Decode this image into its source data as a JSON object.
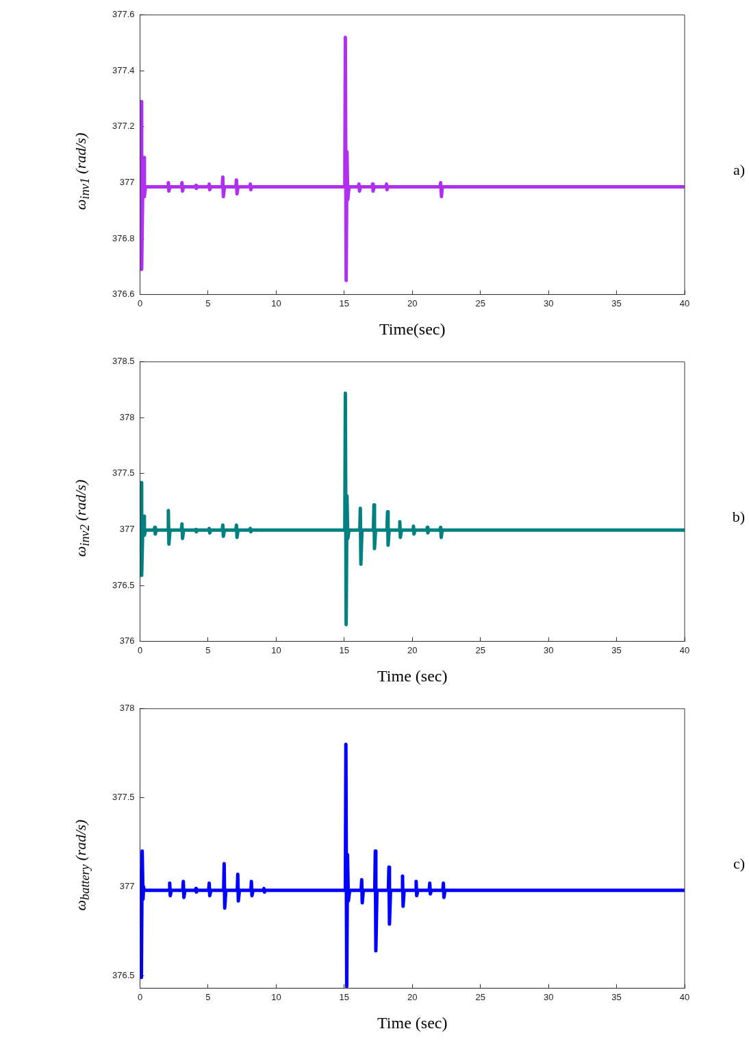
{
  "chart_data": [
    {
      "type": "line",
      "xlabel": "Time(sec)",
      "ylabel": "ω$_{inv1}$ (rad/s)",
      "annotations": [
        "a)"
      ],
      "marker": "none",
      "xlim": [
        0,
        40
      ],
      "xticks": [
        0,
        5,
        10,
        15,
        20,
        25,
        30,
        35,
        40
      ],
      "ylim": [
        376.6,
        377.6
      ],
      "yticks": [
        376.6,
        376.8,
        377,
        377.2,
        377.4,
        377.6
      ],
      "x": [
        0,
        0.08,
        0.12,
        0.2,
        0.28,
        0.32,
        0.4,
        2.04,
        2.08,
        2.12,
        2.2,
        3.04,
        3.08,
        3.12,
        3.2,
        4.06,
        4.1,
        4.14,
        4.2,
        5.04,
        5.08,
        5.12,
        5.2,
        6.04,
        6.08,
        6.12,
        6.2,
        7.04,
        7.08,
        7.12,
        7.2,
        8.06,
        8.1,
        8.14,
        8.2,
        15.04,
        15.08,
        15.14,
        15.2,
        15.26,
        15.35,
        16.04,
        16.08,
        16.12,
        16.2,
        17.04,
        17.08,
        17.12,
        17.2,
        18.06,
        18.1,
        18.14,
        18.2,
        22.04,
        22.08,
        22.14,
        22.2,
        40
      ],
      "series": [
        {
          "color": "#b030f2",
          "values": [
            376.985,
            377.29,
            376.69,
            376.985,
            377.09,
            376.95,
            376.985,
            376.985,
            377.0,
            376.97,
            376.985,
            376.985,
            377.0,
            376.97,
            376.985,
            376.985,
            376.99,
            376.98,
            376.985,
            376.985,
            376.995,
            376.975,
            376.985,
            376.985,
            377.02,
            376.95,
            376.985,
            376.985,
            377.01,
            376.96,
            376.985,
            376.985,
            376.995,
            376.975,
            376.985,
            376.985,
            377.52,
            376.65,
            377.11,
            376.94,
            376.985,
            376.985,
            376.995,
            376.97,
            376.985,
            376.985,
            376.995,
            376.97,
            376.985,
            376.985,
            376.995,
            376.975,
            376.985,
            376.985,
            377.0,
            376.95,
            376.985,
            376.985
          ]
        }
      ]
    },
    {
      "type": "line",
      "xlabel": "Time (sec)",
      "ylabel": "ω$_{inv2}$ (rad/s)",
      "annotations": [
        "b)"
      ],
      "marker": "none",
      "xlim": [
        0,
        40
      ],
      "xticks": [
        0,
        5,
        10,
        15,
        20,
        25,
        30,
        35,
        40
      ],
      "ylim": [
        376,
        378.5
      ],
      "yticks": [
        376,
        376.5,
        377,
        377.5,
        378,
        378.5
      ],
      "x": [
        0,
        0.08,
        0.12,
        0.2,
        0.28,
        0.32,
        0.4,
        1.04,
        1.08,
        1.12,
        1.2,
        2.04,
        2.08,
        2.12,
        2.2,
        3.04,
        3.08,
        3.12,
        3.2,
        4.06,
        4.1,
        4.14,
        4.2,
        5.04,
        5.08,
        5.12,
        5.2,
        6.04,
        6.08,
        6.12,
        6.2,
        7.04,
        7.08,
        7.12,
        7.2,
        8.06,
        8.1,
        8.14,
        8.2,
        15.04,
        15.08,
        15.14,
        15.2,
        15.26,
        15.35,
        16.14,
        16.18,
        16.22,
        16.3,
        17.14,
        17.18,
        17.22,
        17.3,
        18.14,
        18.18,
        18.22,
        18.3,
        19.04,
        19.08,
        19.12,
        19.2,
        20.04,
        20.08,
        20.12,
        20.2,
        21.06,
        21.1,
        21.14,
        21.2,
        22.04,
        22.08,
        22.12,
        22.2,
        40
      ],
      "series": [
        {
          "color": "#008080",
          "values": [
            376.995,
            377.42,
            376.59,
            376.995,
            377.12,
            376.95,
            376.995,
            376.995,
            377.02,
            376.96,
            376.995,
            376.995,
            377.17,
            376.87,
            376.995,
            376.995,
            377.05,
            376.92,
            376.995,
            376.995,
            377.0,
            376.98,
            376.995,
            376.995,
            377.01,
            376.97,
            376.995,
            376.995,
            377.04,
            376.94,
            376.995,
            376.995,
            377.04,
            376.93,
            376.995,
            376.995,
            377.01,
            376.98,
            376.995,
            376.995,
            378.22,
            376.15,
            377.3,
            376.92,
            376.995,
            376.995,
            377.19,
            376.69,
            376.995,
            376.995,
            377.22,
            376.83,
            376.995,
            376.995,
            377.16,
            376.86,
            376.995,
            376.995,
            377.07,
            376.93,
            376.995,
            376.995,
            377.03,
            376.96,
            376.995,
            376.995,
            377.02,
            376.97,
            376.995,
            376.995,
            377.02,
            376.93,
            376.995,
            376.995
          ]
        }
      ]
    },
    {
      "type": "line",
      "xlabel": "Time (sec)",
      "ylabel": "ω$_{battery}$ (rad/s)",
      "annotations": [
        "c)"
      ],
      "marker": "none",
      "xlim": [
        0,
        40
      ],
      "xticks": [
        0,
        5,
        10,
        15,
        20,
        25,
        30,
        35,
        40
      ],
      "ylim": [
        376.43,
        378
      ],
      "yticks": [
        376.5,
        377,
        377.5,
        378
      ],
      "x": [
        0,
        0.1,
        0.16,
        0.22,
        0.26,
        0.3,
        2.14,
        2.18,
        2.22,
        2.3,
        3.14,
        3.18,
        3.22,
        3.3,
        4.06,
        4.1,
        4.14,
        4.2,
        5.04,
        5.08,
        5.12,
        5.2,
        6.14,
        6.18,
        6.22,
        6.3,
        7.14,
        7.18,
        7.22,
        7.3,
        8.14,
        8.18,
        8.22,
        8.3,
        9.06,
        9.1,
        9.14,
        9.2,
        15.08,
        15.12,
        15.18,
        15.24,
        15.3,
        15.4,
        16.24,
        16.28,
        16.32,
        16.4,
        17.24,
        17.28,
        17.32,
        17.4,
        18.24,
        18.28,
        18.32,
        18.4,
        19.24,
        19.28,
        19.32,
        19.4,
        20.24,
        20.28,
        20.32,
        20.4,
        21.24,
        21.28,
        21.32,
        21.4,
        22.24,
        22.28,
        22.32,
        22.4,
        40
      ],
      "series": [
        {
          "color": "#0000ff",
          "values": [
            376.98,
            376.49,
            377.2,
            376.93,
            377.0,
            376.98,
            376.98,
            377.02,
            376.95,
            376.98,
            376.98,
            377.03,
            376.94,
            376.98,
            376.98,
            376.99,
            376.97,
            376.98,
            376.98,
            377.02,
            376.95,
            376.98,
            376.98,
            377.13,
            376.88,
            376.98,
            376.98,
            377.07,
            376.92,
            376.98,
            376.98,
            377.03,
            376.95,
            376.98,
            376.98,
            376.99,
            376.97,
            376.98,
            376.98,
            377.8,
            376.44,
            377.18,
            376.92,
            376.98,
            376.98,
            377.04,
            376.91,
            376.98,
            376.98,
            377.2,
            376.64,
            376.98,
            376.98,
            377.11,
            376.79,
            376.98,
            376.98,
            377.06,
            376.89,
            376.98,
            376.98,
            377.03,
            376.95,
            376.98,
            376.98,
            377.02,
            376.96,
            376.98,
            376.98,
            377.02,
            376.94,
            376.98,
            376.98
          ]
        }
      ]
    }
  ]
}
